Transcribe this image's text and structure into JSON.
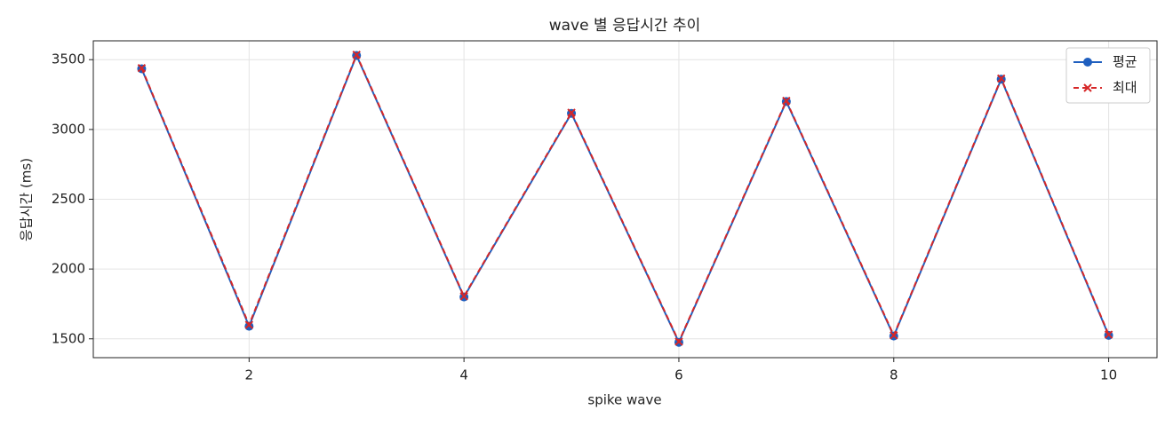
{
  "chart_data": {
    "type": "line",
    "title": "wave 별 응답시간 추이",
    "xlabel": "spike wave",
    "ylabel": "응답시간 (ms)",
    "x": [
      1,
      2,
      3,
      4,
      5,
      6,
      7,
      8,
      9,
      10
    ],
    "series": [
      {
        "name": "평균",
        "color": "#1f5fbf",
        "marker": "o",
        "dash": false,
        "values": [
          3435,
          1590,
          3530,
          1800,
          3115,
          1475,
          3200,
          1520,
          3360,
          1525
        ]
      },
      {
        "name": "최대",
        "color": "#d62728",
        "marker": "x",
        "dash": true,
        "values": [
          3440,
          1600,
          3535,
          1805,
          3120,
          1480,
          3205,
          1525,
          3365,
          1530
        ]
      }
    ],
    "xlim": [
      0.55,
      10.45
    ],
    "ylim": [
      1365,
      3635
    ],
    "xticks": [
      2,
      4,
      6,
      8,
      10
    ],
    "yticks": [
      1500,
      2000,
      2500,
      3000,
      3500
    ],
    "grid": true,
    "legend": "upper right"
  }
}
